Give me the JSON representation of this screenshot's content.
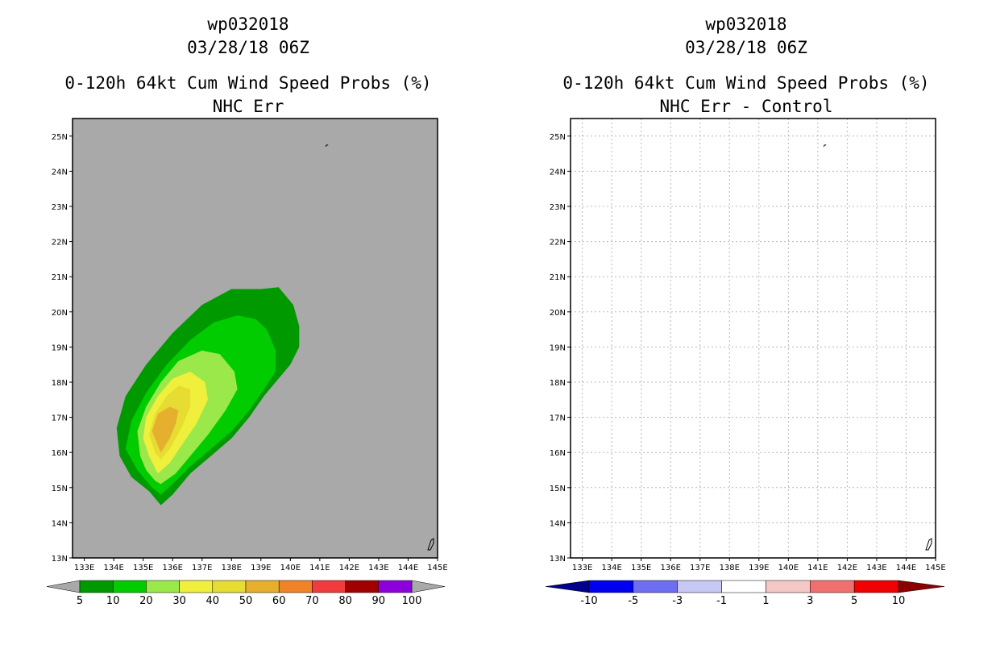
{
  "panels": [
    {
      "id": "left",
      "title_lines": [
        "wp032018",
        "03/28/18 06Z",
        "0-120h 64kt Cum Wind Speed Probs (%)",
        "NHC Err"
      ]
    },
    {
      "id": "right",
      "title_lines": [
        "wp032018",
        "03/28/18 06Z",
        "0-120h 64kt Cum Wind Speed Probs (%)",
        "NHC Err - Control"
      ]
    }
  ],
  "chart_data": [
    {
      "type": "heatmap",
      "title": "0-120h 64kt Cum Wind Speed Probs (%)",
      "subtitle": "NHC Err",
      "storm": "wp032018",
      "time": "03/28/18 06Z",
      "x_ticks": [
        "133E",
        "134E",
        "135E",
        "136E",
        "137E",
        "138E",
        "139E",
        "140E",
        "141E",
        "142E",
        "143E",
        "144E",
        "145E"
      ],
      "y_ticks": [
        "13N",
        "14N",
        "15N",
        "16N",
        "17N",
        "18N",
        "19N",
        "20N",
        "21N",
        "22N",
        "23N",
        "24N",
        "25N"
      ],
      "xlim": [
        132.6,
        145.0
      ],
      "ylim": [
        13.0,
        25.5
      ],
      "grid": false,
      "background_color": "#a9a9a9",
      "contours": [
        {
          "level": 5,
          "color": "#009a00",
          "polygon": [
            [
              135.2,
              14.9
            ],
            [
              135.6,
              14.5
            ],
            [
              136.0,
              14.8
            ],
            [
              136.6,
              15.4
            ],
            [
              137.3,
              15.9
            ],
            [
              138.0,
              16.4
            ],
            [
              138.6,
              17.0
            ],
            [
              139.1,
              17.6
            ],
            [
              139.6,
              18.1
            ],
            [
              140.0,
              18.5
            ],
            [
              140.3,
              19.0
            ],
            [
              140.3,
              19.6
            ],
            [
              140.1,
              20.2
            ],
            [
              139.6,
              20.7
            ],
            [
              139.0,
              20.65
            ],
            [
              138.0,
              20.65
            ],
            [
              137.0,
              20.2
            ],
            [
              136.0,
              19.4
            ],
            [
              135.1,
              18.5
            ],
            [
              134.4,
              17.6
            ],
            [
              134.1,
              16.7
            ],
            [
              134.2,
              15.9
            ],
            [
              134.6,
              15.3
            ]
          ]
        },
        {
          "level": 10,
          "color": "#00cc00",
          "polygon": [
            [
              135.3,
              15.0
            ],
            [
              135.6,
              14.8
            ],
            [
              136.0,
              15.1
            ],
            [
              136.6,
              15.6
            ],
            [
              137.3,
              16.1
            ],
            [
              138.0,
              16.6
            ],
            [
              138.6,
              17.2
            ],
            [
              139.1,
              17.8
            ],
            [
              139.5,
              18.3
            ],
            [
              139.5,
              18.9
            ],
            [
              139.2,
              19.5
            ],
            [
              138.8,
              19.8
            ],
            [
              138.2,
              19.9
            ],
            [
              137.4,
              19.7
            ],
            [
              136.6,
              19.2
            ],
            [
              135.8,
              18.5
            ],
            [
              135.1,
              17.7
            ],
            [
              134.6,
              16.9
            ],
            [
              134.4,
              16.1
            ],
            [
              134.8,
              15.5
            ]
          ]
        },
        {
          "level": 20,
          "color": "#9ae84a",
          "polygon": [
            [
              135.4,
              15.2
            ],
            [
              135.6,
              15.1
            ],
            [
              136.1,
              15.4
            ],
            [
              136.6,
              15.9
            ],
            [
              137.2,
              16.5
            ],
            [
              137.8,
              17.2
            ],
            [
              138.2,
              17.8
            ],
            [
              138.1,
              18.3
            ],
            [
              137.6,
              18.8
            ],
            [
              137.0,
              18.9
            ],
            [
              136.2,
              18.6
            ],
            [
              135.6,
              18.0
            ],
            [
              135.1,
              17.3
            ],
            [
              134.8,
              16.6
            ],
            [
              134.9,
              15.9
            ],
            [
              135.1,
              15.5
            ]
          ]
        },
        {
          "level": 30,
          "color": "#f0f03c",
          "polygon": [
            [
              135.5,
              15.4
            ],
            [
              135.9,
              15.7
            ],
            [
              136.3,
              16.2
            ],
            [
              136.8,
              16.8
            ],
            [
              137.2,
              17.5
            ],
            [
              137.1,
              18.0
            ],
            [
              136.6,
              18.3
            ],
            [
              136.0,
              18.1
            ],
            [
              135.5,
              17.6
            ],
            [
              135.1,
              17.0
            ],
            [
              135.0,
              16.4
            ],
            [
              135.2,
              15.9
            ]
          ]
        },
        {
          "level": 40,
          "color": "#e6dc32",
          "polygon": [
            [
              135.6,
              15.8
            ],
            [
              135.9,
              16.1
            ],
            [
              136.3,
              16.7
            ],
            [
              136.6,
              17.3
            ],
            [
              136.6,
              17.8
            ],
            [
              136.2,
              17.9
            ],
            [
              135.8,
              17.6
            ],
            [
              135.4,
              17.1
            ],
            [
              135.2,
              16.5
            ],
            [
              135.4,
              16.0
            ]
          ]
        },
        {
          "level": 50,
          "color": "#e6af2d",
          "polygon": [
            [
              135.6,
              16.0
            ],
            [
              135.9,
              16.4
            ],
            [
              136.1,
              16.8
            ],
            [
              136.2,
              17.2
            ],
            [
              135.9,
              17.3
            ],
            [
              135.5,
              17.1
            ],
            [
              135.3,
              16.6
            ]
          ]
        }
      ],
      "colorbar": {
        "boundaries": [
          "5",
          "10",
          "20",
          "30",
          "40",
          "50",
          "60",
          "70",
          "80",
          "90",
          "100"
        ],
        "colors": [
          "#009a00",
          "#00cc00",
          "#9ae84a",
          "#f0f03c",
          "#e6dc32",
          "#e6af2d",
          "#f08228",
          "#f03c3c",
          "#a00000",
          "#8c00dc"
        ],
        "extend_colors": [
          "#a9a9a9",
          "#a9a9a9"
        ]
      }
    },
    {
      "type": "heatmap",
      "title": "0-120h 64kt Cum Wind Speed Probs (%)",
      "subtitle": "NHC Err - Control",
      "storm": "wp032018",
      "time": "03/28/18 06Z",
      "x_ticks": [
        "133E",
        "134E",
        "135E",
        "136E",
        "137E",
        "138E",
        "139E",
        "140E",
        "141E",
        "142E",
        "143E",
        "144E",
        "145E"
      ],
      "y_ticks": [
        "13N",
        "14N",
        "15N",
        "16N",
        "17N",
        "18N",
        "19N",
        "20N",
        "21N",
        "22N",
        "23N",
        "24N",
        "25N"
      ],
      "xlim": [
        132.6,
        145.0
      ],
      "ylim": [
        13.0,
        25.5
      ],
      "grid": true,
      "background_color": "#ffffff",
      "contours": [],
      "colorbar": {
        "boundaries": [
          "-10",
          "-5",
          "-3",
          "-1",
          "1",
          "3",
          "5",
          "10"
        ],
        "colors": [
          "#0000f0",
          "#6e6ef0",
          "#c8c8f5",
          "#ffffff",
          "#f5c8c8",
          "#f07070",
          "#f00000"
        ],
        "extend_colors": [
          "#00008c",
          "#8c0000"
        ]
      }
    }
  ]
}
